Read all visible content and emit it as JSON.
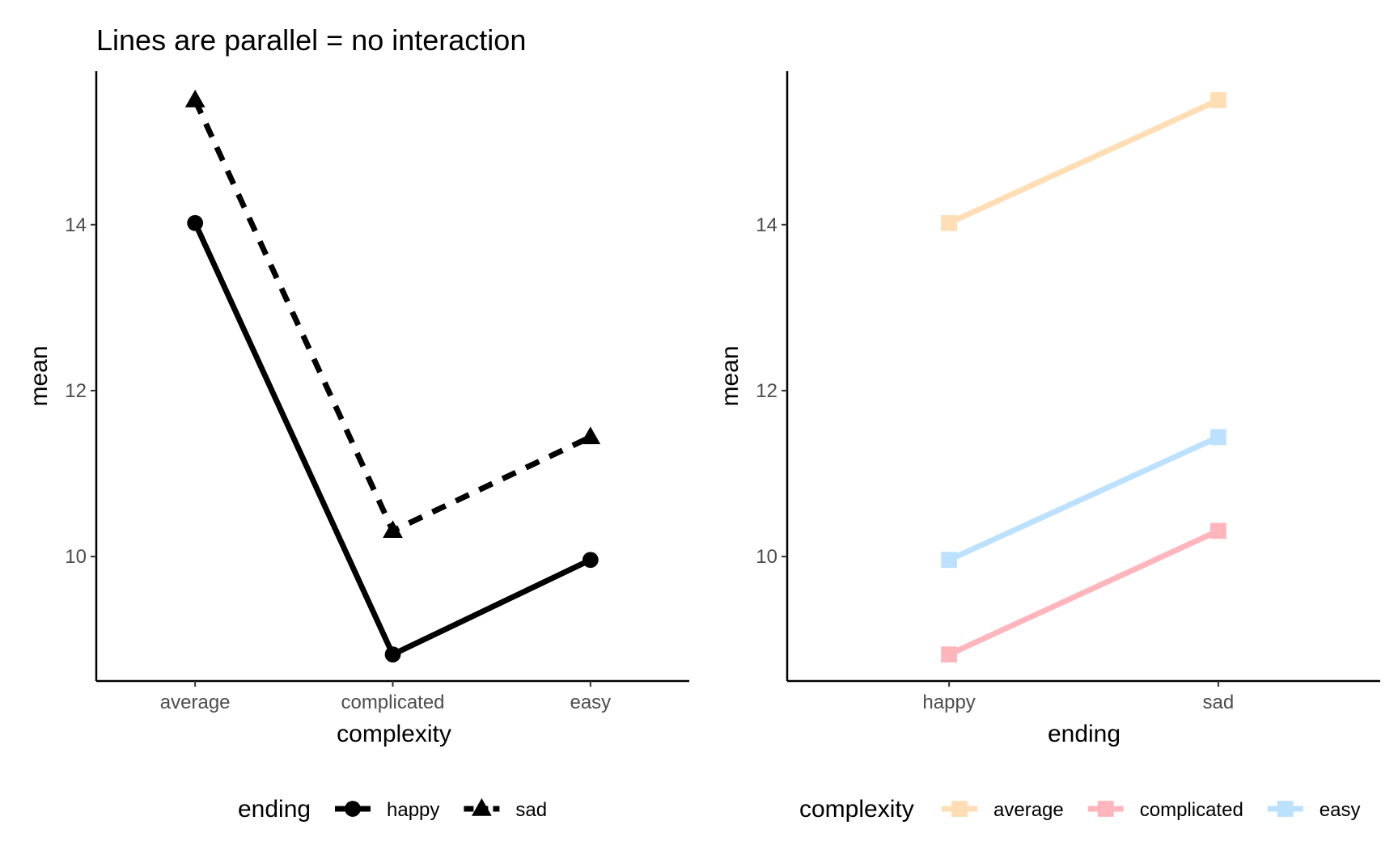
{
  "chart_data": [
    {
      "type": "line",
      "title": "Lines are parallel = no interaction",
      "xlabel": "complexity",
      "ylabel": "mean",
      "categories": [
        "average",
        "complicated",
        "easy"
      ],
      "ylim": [
        8.5,
        15.85
      ],
      "yticks": [
        10,
        12,
        14
      ],
      "ytick_labels": [
        "10",
        "12",
        "14"
      ],
      "grid": false,
      "legend": {
        "title": "ending",
        "position": "bottom"
      },
      "series": [
        {
          "name": "happy",
          "values": [
            14.02,
            8.82,
            9.96
          ],
          "color": "#000000",
          "linetype": "solid",
          "shape": "circle"
        },
        {
          "name": "sad",
          "values": [
            15.5,
            10.31,
            11.44
          ],
          "color": "#000000",
          "linetype": "dashed",
          "shape": "triangle"
        }
      ]
    },
    {
      "type": "line",
      "title": "",
      "xlabel": "ending",
      "ylabel": "mean",
      "categories": [
        "happy",
        "sad"
      ],
      "ylim": [
        8.5,
        15.85
      ],
      "yticks": [
        10,
        12,
        14
      ],
      "ytick_labels": [
        "10",
        "12",
        "14"
      ],
      "grid": false,
      "legend": {
        "title": "complexity",
        "position": "bottom"
      },
      "series": [
        {
          "name": "average",
          "values": [
            14.02,
            15.5
          ],
          "color": "#FFDEB5",
          "linetype": "solid",
          "shape": "square"
        },
        {
          "name": "complicated",
          "values": [
            8.82,
            10.31
          ],
          "color": "#FFB5BC",
          "linetype": "solid",
          "shape": "square"
        },
        {
          "name": "easy",
          "values": [
            9.96,
            11.44
          ],
          "color": "#BCE1FF",
          "linetype": "solid",
          "shape": "square"
        }
      ]
    }
  ]
}
